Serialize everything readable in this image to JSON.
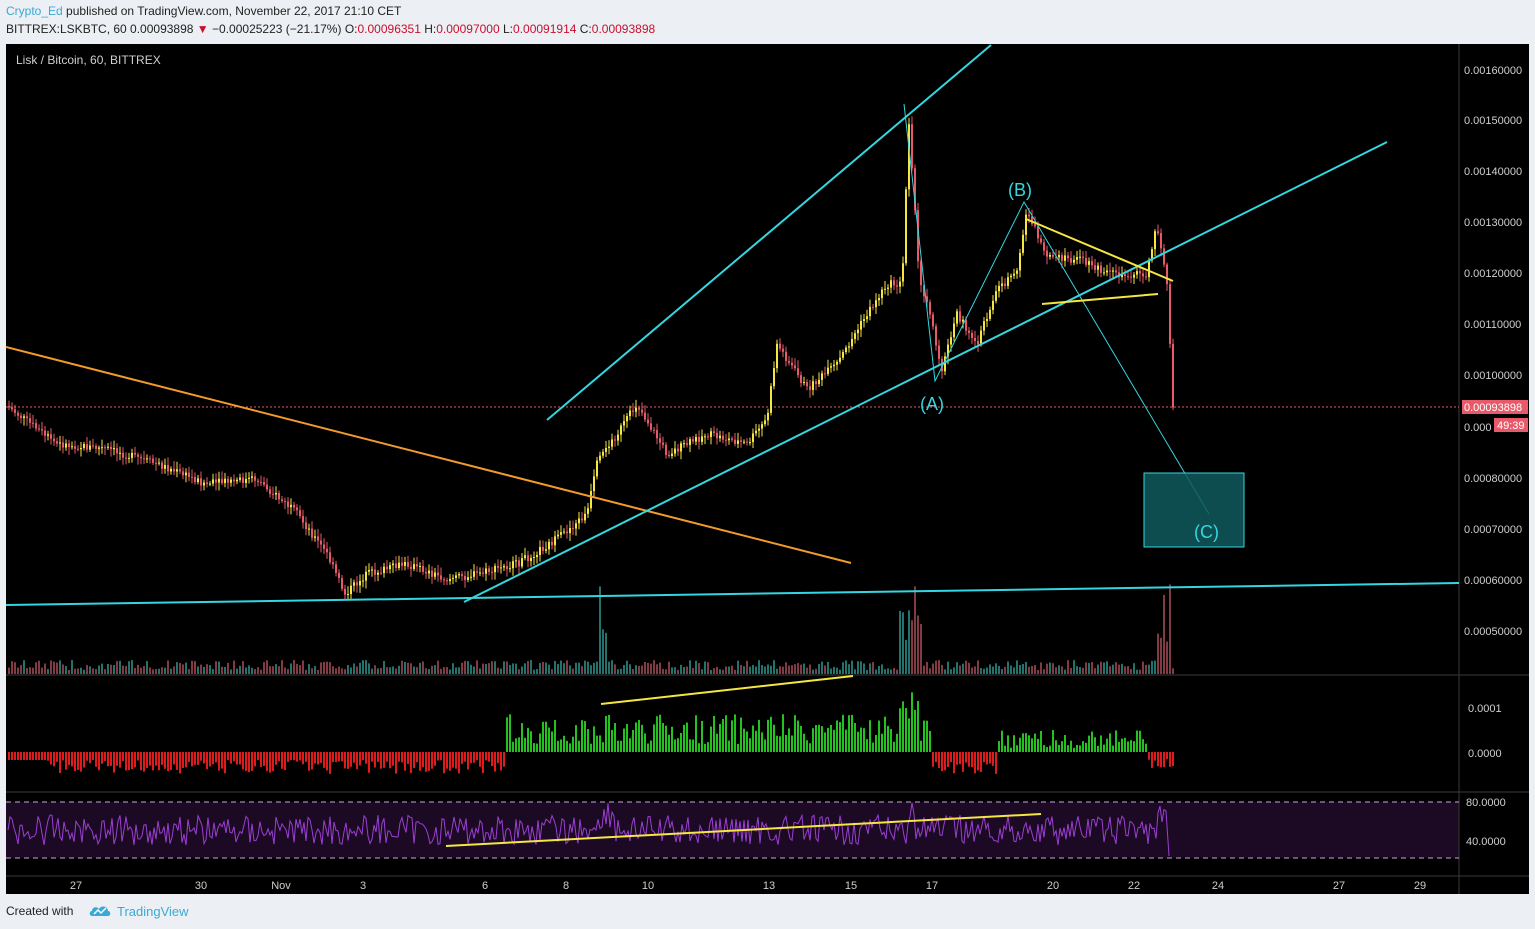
{
  "header": {
    "author": "Crypto_Ed",
    "published": "published on TradingView.com, November 22, 2017 21:10 CET",
    "symbol": "BITTREX:LSKBTC, 60",
    "last": "0.00093898",
    "change": "−0.00025223 (−21.17%)",
    "open_label": "O:",
    "open": "0.00096351",
    "high_label": "H:",
    "high": "0.00097000",
    "low_label": "L:",
    "low": "0.00091914",
    "close_label": "C:",
    "close": "0.00093898"
  },
  "chart": {
    "title": "Lisk / Bitcoin, 60, BITTREX",
    "price_labels": [
      "0.00160000",
      "0.00150000",
      "0.00140000",
      "0.00130000",
      "0.00120000",
      "0.00110000",
      "0.00100000",
      "0.00080000",
      "0.00070000",
      "0.00060000",
      "0.00050000"
    ],
    "current_price_tag": "0.00093898",
    "partial_label": "0.000",
    "countdown": "49:39",
    "osc_labels": [
      "0.0001",
      "0.0000"
    ],
    "rsi_labels": [
      "80.0000",
      "40.0000"
    ],
    "x_labels": [
      "27",
      "30",
      "Nov",
      "3",
      "6",
      "8",
      "10",
      "13",
      "15",
      "17",
      "20",
      "22",
      "24",
      "27",
      "29"
    ],
    "wave_labels": {
      "a": "(A)",
      "b": "(B)",
      "c": "(C)"
    },
    "colors": {
      "up": "#f5e642",
      "down": "#e85a6a",
      "cyan": "#35d6e0",
      "orange": "#f39a2c",
      "yellow": "#f5e642",
      "rsi": "#9b3fd3"
    }
  },
  "footer": {
    "created": "Created with",
    "brand": "TradingView"
  }
}
